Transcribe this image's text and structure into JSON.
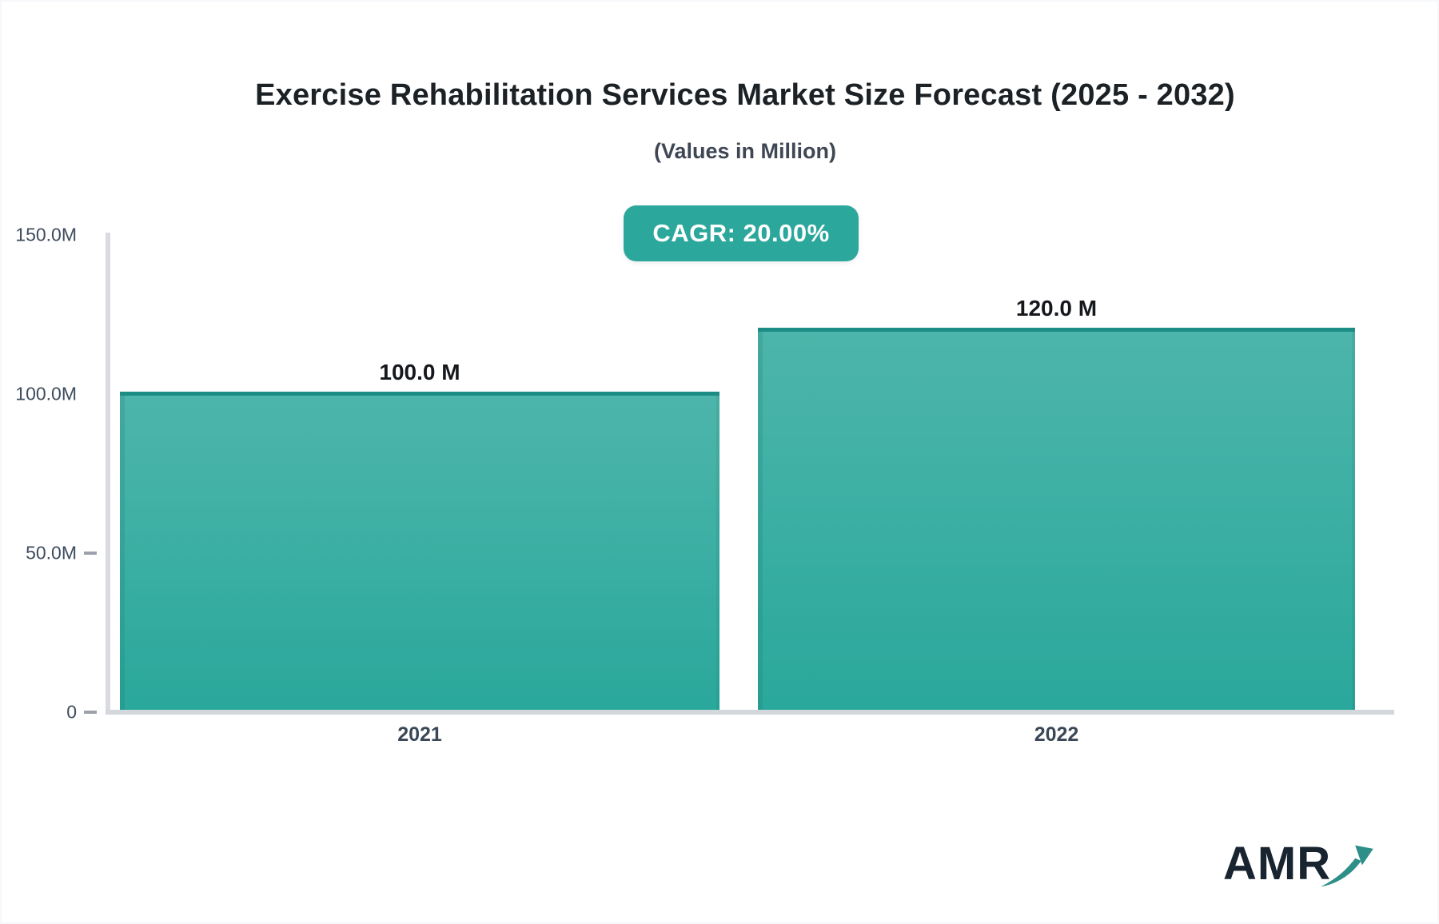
{
  "page": {
    "title": "Exercise Rehabilitation Services Market Size Forecast (2025 - 2032)",
    "subtitle": "(Values in Million)",
    "cagr_badge": "CAGR: 20.00%",
    "logo_text": "AMR"
  },
  "colors": {
    "badge_bg": "#2ba79c",
    "bar_fill_top": "#4db5ab",
    "bar_fill_bottom": "#2aa89b",
    "bar_top_border": "#1c8c85",
    "axis_line": "#d6d9de",
    "tick_text": "#3e4c5e",
    "title_text": "#1c2126",
    "subtitle_text": "#3f4754",
    "logo_text": "#18242f",
    "logo_arrow": "#2d8f88"
  },
  "chart_data": {
    "type": "bar",
    "title": "Exercise Rehabilitation Services Market Size Forecast (2025 - 2032)",
    "subtitle": "(Values in Million)",
    "annotation": "CAGR: 20.00%",
    "categories": [
      "2021",
      "2022"
    ],
    "values": [
      100,
      120
    ],
    "value_labels": [
      "100.0 M",
      "120.0 M"
    ],
    "xlabel": "",
    "ylabel": "",
    "ylim": [
      0,
      150
    ],
    "y_ticks": [
      {
        "label": "150.0M",
        "value": 150,
        "dash": false
      },
      {
        "label": "100.0M",
        "value": 100,
        "dash": false
      },
      {
        "label": "50.0M",
        "value": 50,
        "dash": true
      },
      {
        "label": "0",
        "value": 0,
        "dash": true
      }
    ],
    "grid": false,
    "legend": false
  }
}
